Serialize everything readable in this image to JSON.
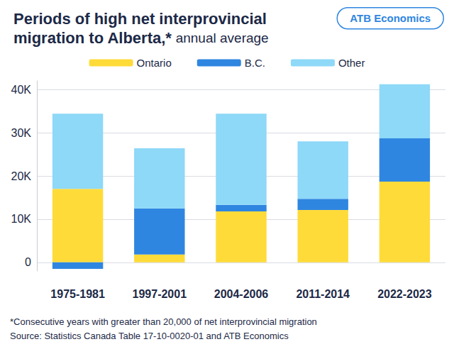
{
  "chart_data": {
    "type": "bar",
    "title": "Periods of high net interprovincial migration to Alberta,*",
    "subtitle": "annual average",
    "logo": "ATB Economics",
    "categories": [
      "1975-1981",
      "1997-2001",
      "2004-2006",
      "2011-2014",
      "2022-2023"
    ],
    "series": [
      {
        "name": "Ontario",
        "color": "#FFDB3A",
        "values": [
          17000,
          1800,
          11800,
          12100,
          18700
        ]
      },
      {
        "name": "B.C.",
        "color": "#2F86E0",
        "values": [
          -1500,
          10700,
          1500,
          2600,
          10000
        ]
      },
      {
        "name": "Other",
        "color": "#8ED8F8",
        "values": [
          17400,
          13900,
          21100,
          13300,
          12500
        ]
      }
    ],
    "ylim": [
      -2000,
      42000
    ],
    "yticks": [
      0,
      {
        "value": 10000,
        "label": "10K"
      },
      {
        "value": 20000,
        "label": "20K"
      },
      {
        "value": 30000,
        "label": "30K"
      },
      {
        "value": 40000,
        "label": "40K"
      }
    ],
    "stacked": true,
    "grid": true,
    "legend": "top",
    "notes": [
      "*Consecutive years with greater than 20,000 of net interprovincial migration",
      "Source: Statistics Canada Table 17-10-0020-01 and ATB Economics"
    ]
  }
}
